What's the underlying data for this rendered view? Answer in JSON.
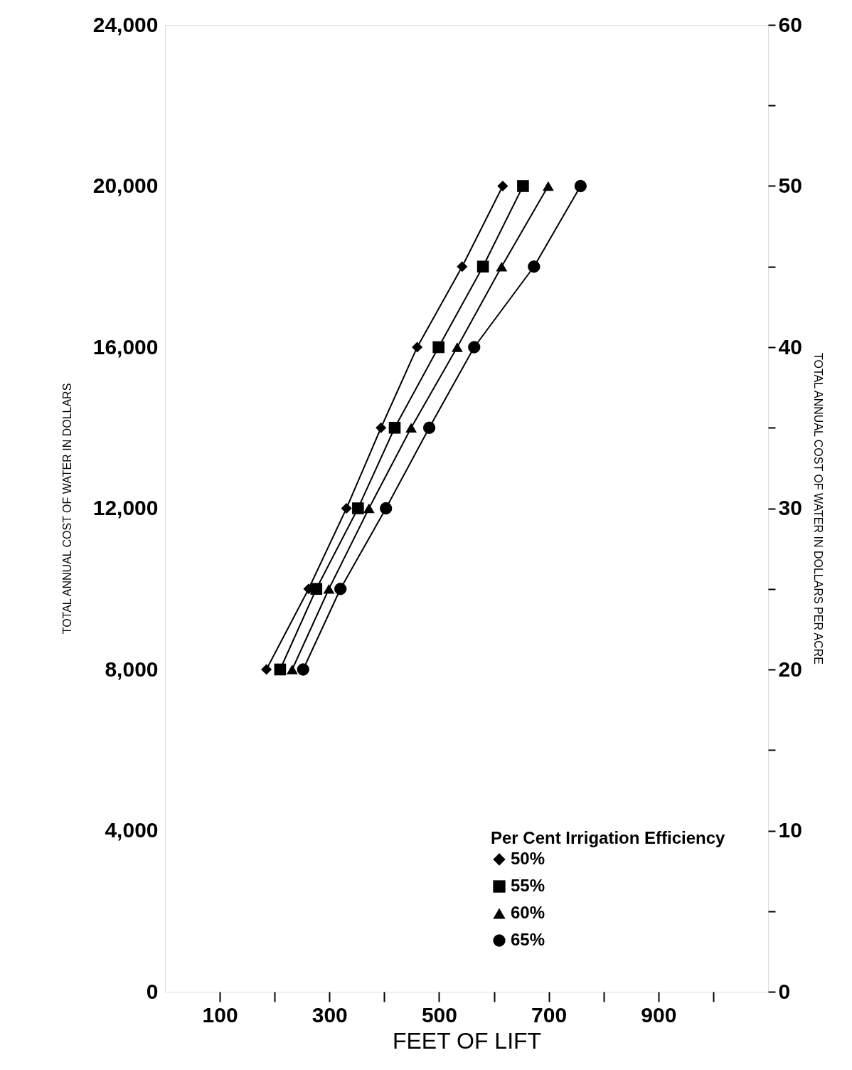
{
  "chart_data": {
    "type": "line",
    "xlabel": "FEET OF LIFT",
    "ylabel": "TOTAL ANNUAL COST OF WATER IN DOLLARS",
    "y2label": "TOTAL ANNUAL COST OF WATER IN DOLLARS PER ACRE",
    "legend_title": "Per Cent Irrigation Efficiency",
    "legend": "bottom right",
    "grid": false,
    "line_style": "solid",
    "xlim": [
      0,
      1100
    ],
    "xticks": [
      100,
      {
        "value": 200,
        "label": null
      },
      300,
      {
        "value": 400,
        "label": null
      },
      500,
      {
        "value": 600,
        "label": null
      },
      700,
      {
        "value": 800,
        "label": null
      },
      900,
      {
        "value": 1000,
        "label": null
      }
    ],
    "ylim": [
      0,
      24000
    ],
    "yticks": [
      0,
      {
        "value": 4000,
        "label": "4,000"
      },
      {
        "value": 8000,
        "label": "8,000"
      },
      {
        "value": 12000,
        "label": "12,000"
      },
      {
        "value": 16000,
        "label": "16,000"
      },
      {
        "value": 20000,
        "label": "20,000"
      },
      {
        "value": 24000,
        "label": "24,000"
      }
    ],
    "y2lim": [
      0,
      60
    ],
    "y2ticks": [
      0,
      {
        "value": 5,
        "label": null
      },
      10,
      {
        "value": 15,
        "label": null
      },
      20,
      {
        "value": 25,
        "label": null
      },
      30,
      {
        "value": 35,
        "label": null
      },
      40,
      {
        "value": 45,
        "label": null
      },
      50,
      {
        "value": 55,
        "label": null
      },
      60
    ],
    "series": [
      {
        "name": "50%",
        "color": "#000000",
        "marker": "diamond",
        "x": [
          185,
          262,
          331,
          394,
          460,
          542,
          616
        ],
        "values": [
          8000,
          10000,
          12000,
          14000,
          16000,
          18000,
          20000
        ]
      },
      {
        "name": "55%",
        "color": "#000000",
        "marker": "square",
        "x": [
          210,
          276,
          352,
          419,
          499,
          580,
          653
        ],
        "values": [
          8000,
          10000,
          12000,
          14000,
          16000,
          18000,
          20000
        ]
      },
      {
        "name": "60%",
        "color": "#000000",
        "marker": "triangle",
        "x": [
          232,
          299,
          372,
          449,
          533,
          614,
          699
        ],
        "values": [
          8000,
          10000,
          12000,
          14000,
          16000,
          18000,
          20000
        ]
      },
      {
        "name": "65%",
        "color": "#000000",
        "marker": "circle",
        "x": [
          252,
          320,
          403,
          482,
          564,
          673,
          758
        ],
        "values": [
          8000,
          10000,
          12000,
          14000,
          16000,
          18000,
          20000
        ]
      }
    ]
  }
}
